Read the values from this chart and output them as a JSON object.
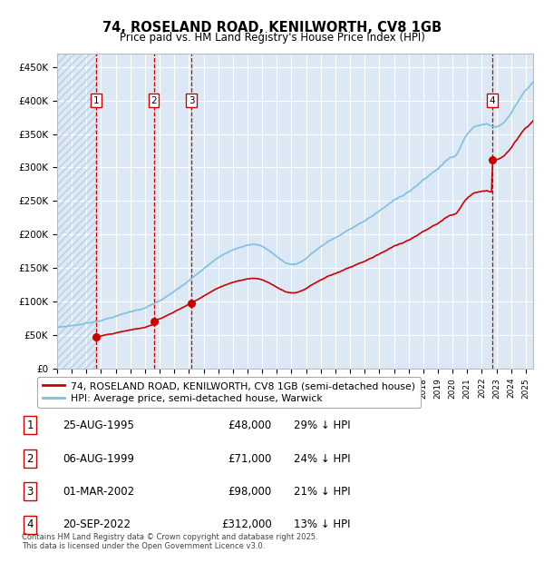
{
  "title": "74, ROSELAND ROAD, KENILWORTH, CV8 1GB",
  "subtitle": "Price paid vs. HM Land Registry's House Price Index (HPI)",
  "ylim": [
    0,
    470000
  ],
  "yticks": [
    0,
    50000,
    100000,
    150000,
    200000,
    250000,
    300000,
    350000,
    400000,
    450000
  ],
  "ytick_labels": [
    "£0",
    "£50K",
    "£100K",
    "£150K",
    "£200K",
    "£250K",
    "£300K",
    "£350K",
    "£400K",
    "£450K"
  ],
  "background_color": "#dce9f5",
  "grid_color": "#ffffff",
  "hatch_color": "#b8cfe0",
  "transaction_dates": [
    1995.646,
    1999.596,
    2002.165,
    2022.722
  ],
  "transaction_prices": [
    48000,
    71000,
    98000,
    312000
  ],
  "hpi_line_color": "#7fbfdf",
  "price_line_color": "#cc0000",
  "vline_color": "#cc0000",
  "footer": "Contains HM Land Registry data © Crown copyright and database right 2025.\nThis data is licensed under the Open Government Licence v3.0.",
  "legend_line1": "74, ROSELAND ROAD, KENILWORTH, CV8 1GB (semi-detached house)",
  "legend_line2": "HPI: Average price, semi-detached house, Warwick",
  "table": [
    {
      "num": "1",
      "date": "25-AUG-1995",
      "price": "£48,000",
      "hpi": "29% ↓ HPI"
    },
    {
      "num": "2",
      "date": "06-AUG-1999",
      "price": "£71,000",
      "hpi": "24% ↓ HPI"
    },
    {
      "num": "3",
      "date": "01-MAR-2002",
      "price": "£98,000",
      "hpi": "21% ↓ HPI"
    },
    {
      "num": "4",
      "date": "20-SEP-2022",
      "price": "£312,000",
      "hpi": "13% ↓ HPI"
    }
  ]
}
